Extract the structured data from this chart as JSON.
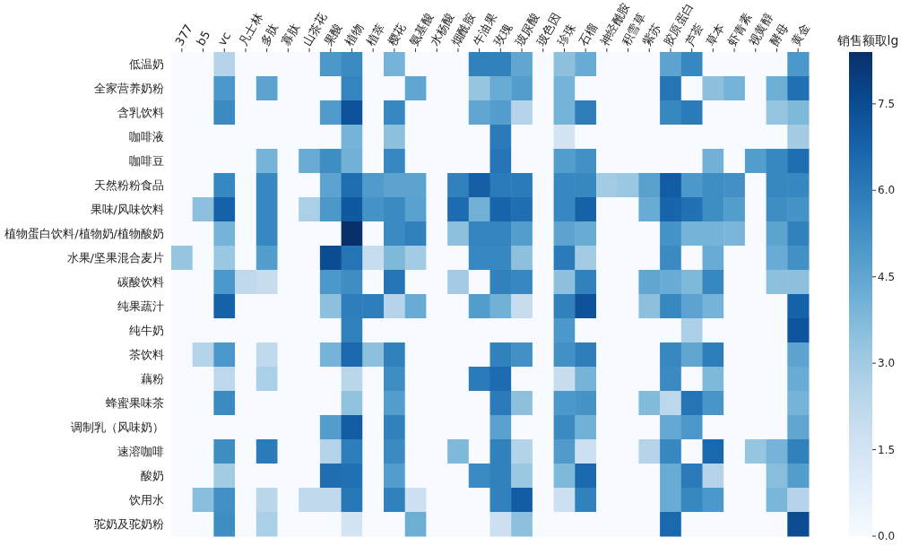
{
  "chart_data": {
    "type": "heatmap",
    "clabel": "销售额取lg",
    "categories": [
      "377",
      "b5",
      "vc",
      "凡士林",
      "多肽",
      "寡肽",
      "山茶花",
      "果酸",
      "植物",
      "植萃",
      "樱花",
      "氨基酸",
      "水杨酸",
      "烟酰胺",
      "牛油果",
      "玫瑰",
      "玻尿酸",
      "玻色因",
      "珍珠",
      "石榴",
      "神经酰胺",
      "积雪草",
      "紫苏",
      "胶原蛋白",
      "芦荟",
      "草本",
      "虾青素",
      "视黄醇",
      "酵母",
      "黄金"
    ],
    "y_categories": [
      "低温奶",
      "全家营养奶粉",
      "含乳饮料",
      "咖啡液",
      "咖啡豆",
      "天然粉粉食品",
      "果味/风味饮料",
      "植物蛋白饮料/植物奶/植物酸奶",
      "水果/坚果混合麦片",
      "碳酸饮料",
      "纯果蔬汁",
      "纯牛奶",
      "茶饮料",
      "藕粉",
      "蜂蜜果味茶",
      "调制乳（风味奶）",
      "速溶咖啡",
      "酸奶",
      "饮用水",
      "驼奶及驼奶粉"
    ],
    "cells": [
      [
        0,
        0,
        2.5,
        0,
        0,
        0,
        0,
        5.0,
        5.5,
        0,
        4.0,
        0,
        0,
        0,
        5.8,
        5.8,
        4.5,
        0,
        3.5,
        4.3,
        0,
        0,
        0,
        4.6,
        5.6,
        0,
        0,
        0,
        0,
        5.0
      ],
      [
        0,
        0,
        5.0,
        0,
        4.6,
        0,
        0,
        0,
        5.7,
        0,
        0,
        4.5,
        0,
        0,
        3.3,
        4.3,
        4.8,
        0,
        4.0,
        0,
        0,
        0,
        0,
        6.2,
        0,
        3.5,
        4.0,
        0,
        4.2,
        6.3
      ],
      [
        0,
        0,
        5.5,
        0,
        0,
        0,
        0,
        4.9,
        7.3,
        0,
        5.6,
        0,
        0,
        0,
        4.5,
        4.8,
        2.5,
        0,
        4.0,
        5.9,
        0,
        0,
        0,
        5.6,
        6.0,
        0,
        0,
        0,
        3.3,
        3.8
      ],
      [
        0,
        0,
        0,
        0,
        0,
        0,
        0,
        0,
        4.0,
        0,
        3.5,
        0,
        0,
        0,
        0,
        6.0,
        0,
        0,
        1.5,
        0,
        0,
        0,
        0,
        0,
        0,
        0,
        0,
        0,
        0,
        3.0
      ],
      [
        0,
        0,
        0,
        0,
        4.0,
        0,
        4.3,
        5.4,
        4.1,
        0,
        5.6,
        0,
        0,
        0,
        0,
        6.2,
        0,
        0,
        4.8,
        5.3,
        0,
        0,
        0,
        0,
        0,
        4.1,
        0,
        4.8,
        5.6,
        6.4
      ],
      [
        0,
        0,
        5.6,
        0,
        5.6,
        0,
        0,
        4.6,
        6.4,
        4.9,
        4.6,
        4.6,
        0,
        5.8,
        6.9,
        6.0,
        6.0,
        0,
        5.6,
        5.6,
        3.0,
        3.2,
        4.7,
        7.0,
        5.0,
        5.4,
        5.3,
        0,
        5.6,
        5.6
      ],
      [
        0,
        3.5,
        6.8,
        0,
        5.6,
        0,
        2.8,
        5.0,
        7.1,
        5.2,
        5.5,
        4.7,
        0,
        6.5,
        4.1,
        6.7,
        6.4,
        0,
        5.6,
        6.8,
        0,
        0,
        4.3,
        6.7,
        6.3,
        5.4,
        4.8,
        0,
        5.4,
        5.2
      ],
      [
        0,
        0,
        4.0,
        0,
        5.6,
        0,
        0,
        0,
        8.4,
        0,
        5.5,
        5.8,
        0,
        3.5,
        5.7,
        5.7,
        4.8,
        0,
        4.6,
        4.3,
        0,
        0,
        0,
        5.2,
        4.0,
        4.0,
        3.9,
        0,
        4.6,
        5.8
      ],
      [
        3.3,
        0,
        3.2,
        0,
        4.8,
        0,
        0,
        7.5,
        6.2,
        2.0,
        3.8,
        3.0,
        0,
        0,
        5.6,
        5.6,
        3.5,
        0,
        6.0,
        3.0,
        0,
        0,
        0,
        5.5,
        0,
        4.3,
        0,
        0,
        4.3,
        5.3
      ],
      [
        0,
        0,
        5.0,
        2.2,
        2.0,
        0,
        0,
        5.0,
        5.4,
        0,
        6.2,
        0,
        0,
        3.0,
        0,
        5.8,
        5.6,
        0,
        3.5,
        5.8,
        0,
        0,
        4.5,
        4.3,
        3.8,
        5.6,
        0,
        0,
        3.5,
        3.5
      ],
      [
        0,
        0,
        6.8,
        0,
        0,
        0,
        0,
        3.5,
        5.9,
        5.9,
        2.5,
        4.3,
        0,
        0,
        4.8,
        4.1,
        2.0,
        0,
        5.8,
        7.3,
        0,
        0,
        3.5,
        5.6,
        4.6,
        4.0,
        0,
        0,
        0,
        6.8
      ],
      [
        0,
        0,
        0,
        0,
        0,
        0,
        0,
        0,
        5.8,
        0,
        0,
        0,
        0,
        0,
        0,
        0,
        0,
        0,
        5.0,
        0,
        0,
        0,
        0,
        0,
        2.8,
        0,
        0,
        0,
        0,
        7.2
      ],
      [
        0,
        2.5,
        5.0,
        0,
        2.2,
        0,
        0,
        4.0,
        6.6,
        3.5,
        5.8,
        0,
        0,
        0,
        0,
        5.8,
        5.3,
        0,
        5.3,
        5.9,
        0,
        0,
        0,
        5.6,
        4.5,
        5.9,
        0,
        0,
        0,
        4.6
      ],
      [
        0,
        0,
        2.3,
        0,
        2.8,
        0,
        0,
        0,
        2.4,
        0,
        5.4,
        0,
        0,
        0,
        6.0,
        6.5,
        0,
        0,
        2.0,
        4.0,
        0,
        0,
        0,
        5.5,
        0,
        3.8,
        0,
        0,
        0,
        4.3
      ],
      [
        0,
        0,
        5.5,
        0,
        0,
        0,
        0,
        0,
        3.4,
        0,
        4.8,
        0,
        0,
        0,
        0,
        6.0,
        3.5,
        0,
        5.0,
        5.2,
        0,
        0,
        3.7,
        2.3,
        6.2,
        5.1,
        0,
        0,
        0,
        4.0
      ],
      [
        0,
        0,
        0,
        0,
        0,
        0,
        0,
        4.8,
        7.0,
        0,
        5.8,
        0,
        0,
        0,
        0,
        4.7,
        0,
        0,
        5.5,
        4.1,
        0,
        0,
        0,
        4.4,
        5.0,
        0,
        0,
        0,
        0,
        4.5
      ],
      [
        0,
        0,
        5.4,
        0,
        6.0,
        0,
        0,
        2.5,
        5.9,
        0,
        5.5,
        0,
        0,
        3.8,
        0,
        5.8,
        2.6,
        0,
        4.9,
        1.8,
        0,
        0,
        2.5,
        5.6,
        0,
        6.6,
        0,
        3.3,
        4.0,
        5.8
      ],
      [
        0,
        0,
        3.0,
        0,
        0,
        0,
        0,
        6.4,
        6.3,
        0,
        4.8,
        0,
        0,
        0,
        5.5,
        5.8,
        3.2,
        0,
        3.8,
        6.6,
        0,
        0,
        0,
        4.3,
        6.0,
        2.5,
        0,
        0,
        3.6,
        4.8
      ],
      [
        0,
        3.6,
        5.3,
        0,
        2.4,
        0,
        2.2,
        2.2,
        6.1,
        0,
        5.8,
        1.8,
        0,
        0,
        0,
        5.8,
        7.0,
        0,
        1.8,
        5.8,
        0,
        0,
        0,
        4.3,
        5.6,
        5.0,
        0,
        0,
        3.9,
        2.5
      ],
      [
        0,
        0,
        5.4,
        0,
        2.8,
        0,
        0,
        0,
        1.5,
        0,
        0,
        4.2,
        0,
        0,
        0,
        1.8,
        3.5,
        0,
        0,
        0,
        0,
        0,
        0,
        6.6,
        0,
        0,
        0,
        0,
        0,
        7.5
      ]
    ],
    "clim": [
      0,
      8.4
    ],
    "cticks": [
      {
        "value": 0,
        "label": "0.0"
      },
      {
        "value": 1.5,
        "label": "1.5"
      },
      {
        "value": 3,
        "label": "3.0"
      },
      {
        "value": 4.5,
        "label": "4.5"
      },
      {
        "value": 6,
        "label": "6.0"
      },
      {
        "value": 7.5,
        "label": "7.5"
      }
    ]
  }
}
